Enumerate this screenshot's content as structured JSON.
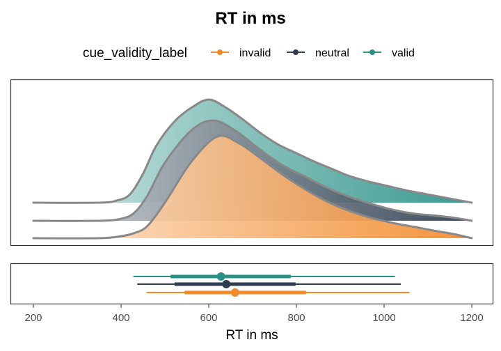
{
  "chart_data": {
    "type": "density",
    "title": "RT in ms",
    "xlabel": "RT in ms",
    "ylabel": "",
    "xlim": [
      200,
      1200
    ],
    "x_ticks": [
      200,
      400,
      600,
      800,
      1000,
      1200
    ],
    "legend": {
      "title": "cue_validity_label",
      "placement": "top"
    },
    "grid": false,
    "series": [
      {
        "name": "invalid",
        "color": "#f28a2a",
        "density_x": [
          200,
          350,
          400,
          430,
          460,
          500,
          560,
          620,
          670,
          720,
          770,
          820,
          870,
          920,
          970,
          1020,
          1070,
          1120,
          1160,
          1190,
          1200
        ],
        "density_y": [
          0.0,
          0.0,
          0.02,
          0.05,
          0.12,
          0.35,
          0.75,
          1.0,
          0.93,
          0.78,
          0.62,
          0.48,
          0.36,
          0.27,
          0.2,
          0.15,
          0.11,
          0.07,
          0.04,
          0.01,
          0.0
        ],
        "median": 660,
        "interval_66": [
          545,
          822
        ],
        "interval_95": [
          458,
          1058
        ]
      },
      {
        "name": "neutral",
        "color": "#2e3d4f",
        "density_x": [
          200,
          350,
          400,
          430,
          460,
          500,
          560,
          610,
          660,
          720,
          770,
          820,
          870,
          920,
          970,
          1020,
          1070,
          1120,
          1160,
          1200
        ],
        "density_y": [
          0.0,
          0.0,
          0.02,
          0.08,
          0.25,
          0.58,
          0.9,
          1.0,
          0.9,
          0.7,
          0.55,
          0.44,
          0.33,
          0.24,
          0.17,
          0.11,
          0.07,
          0.05,
          0.03,
          0.0
        ],
        "median": 640,
        "interval_66": [
          522,
          798
        ],
        "interval_95": [
          437,
          1038
        ]
      },
      {
        "name": "valid",
        "color": "#2a9187",
        "density_x": [
          200,
          350,
          390,
          420,
          450,
          480,
          520,
          560,
          600,
          640,
          680,
          720,
          760,
          800,
          840,
          880,
          920,
          960,
          1000,
          1050,
          1100,
          1150,
          1200
        ],
        "density_y": [
          0.0,
          0.0,
          0.02,
          0.08,
          0.28,
          0.55,
          0.78,
          0.92,
          1.0,
          0.92,
          0.8,
          0.67,
          0.56,
          0.48,
          0.4,
          0.33,
          0.26,
          0.21,
          0.17,
          0.12,
          0.08,
          0.04,
          0.0
        ],
        "median": 628,
        "interval_66": [
          513,
          787
        ],
        "interval_95": [
          428,
          1025
        ]
      }
    ]
  }
}
